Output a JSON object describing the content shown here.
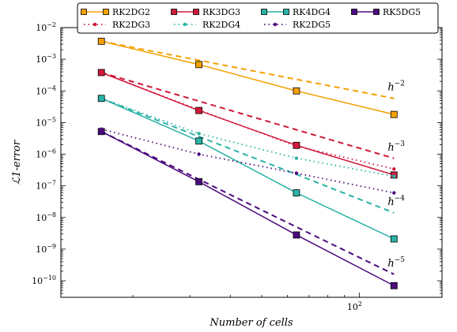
{
  "chart_data": {
    "type": "line",
    "xlabel": "Number of cells",
    "ylabel": "ℒ1-error",
    "xscale": "log",
    "yscale": "log",
    "xlim": [
      12,
      180
    ],
    "ylim": [
      3e-11,
      0.01
    ],
    "x_tick_labels": [
      {
        "value": 100,
        "base": "10",
        "exp": "2"
      }
    ],
    "y_tick_labels": [
      {
        "value": 1e-10,
        "base": "10",
        "exp": "−10"
      },
      {
        "value": 1e-09,
        "base": "10",
        "exp": "−9"
      },
      {
        "value": 1e-08,
        "base": "10",
        "exp": "−8"
      },
      {
        "value": 1e-07,
        "base": "10",
        "exp": "−7"
      },
      {
        "value": 1e-06,
        "base": "10",
        "exp": "−6"
      },
      {
        "value": 1e-05,
        "base": "10",
        "exp": "−5"
      },
      {
        "value": 0.0001,
        "base": "10",
        "exp": "−4"
      },
      {
        "value": 0.001,
        "base": "10",
        "exp": "−3"
      },
      {
        "value": 0.01,
        "base": "10",
        "exp": "−2"
      }
    ],
    "x": [
      16,
      32,
      64,
      128
    ],
    "series": [
      {
        "name": "RK2DG2",
        "color": "#f5a000",
        "style": "solid",
        "marker": "square",
        "values": [
          0.0037,
          0.00068,
          0.0001,
          1.8e-05
        ]
      },
      {
        "name": "RK3DG3",
        "color": "#d0193a",
        "style": "solid",
        "marker": "square",
        "values": [
          0.00038,
          2.4e-05,
          1.9e-06,
          2.2e-07
        ]
      },
      {
        "name": "RK4DG4",
        "color": "#2ab3a6",
        "style": "solid",
        "marker": "square",
        "values": [
          5.8e-05,
          2.6e-06,
          6e-08,
          2.1e-09
        ]
      },
      {
        "name": "RK5DG5",
        "color": "#4b0a7e",
        "style": "solid",
        "marker": "square",
        "values": [
          5.2e-06,
          1.35e-07,
          2.8e-09,
          7e-11
        ]
      },
      {
        "name": "RK2DG3",
        "color": "#d0193a",
        "style": "dotted",
        "marker": "dot",
        "values": [
          0.00038,
          2.5e-05,
          1.8e-06,
          3.4e-07
        ]
      },
      {
        "name": "RK2DG4",
        "color": "#2ab3a6",
        "style": "dotted",
        "marker": "dot",
        "values": [
          5.8e-05,
          4.5e-06,
          7.5e-07,
          2e-07
        ]
      },
      {
        "name": "RK2DG5",
        "color": "#4b0a7e",
        "style": "dotted",
        "marker": "dot",
        "values": [
          6.2e-06,
          1e-06,
          2.5e-07,
          6e-08
        ]
      }
    ],
    "reference_lines": [
      {
        "label": "h",
        "exp": "−2",
        "color": "#f5a000",
        "values": [
          0.0037,
          0.000925,
          0.000231,
          5.8e-05
        ]
      },
      {
        "label": "h",
        "exp": "−3",
        "color": "#d0193a",
        "values": [
          0.00038,
          4.75e-05,
          5.9e-06,
          7.4e-07
        ]
      },
      {
        "label": "h",
        "exp": "−4",
        "color": "#2ab3a6",
        "values": [
          5.8e-05,
          3.6e-06,
          2.3e-07,
          1.4e-08
        ]
      },
      {
        "label": "h",
        "exp": "−5",
        "color": "#4b0a7e",
        "values": [
          5.2e-06,
          1.6e-07,
          5e-09,
          1.6e-10
        ]
      }
    ],
    "legend": {
      "position": "top",
      "columns": 4,
      "order": [
        "RK2DG2",
        "RK3DG3",
        "RK4DG4",
        "RK5DG5",
        "RK2DG3",
        "RK2DG4",
        "RK2DG5"
      ]
    },
    "grid": false
  }
}
